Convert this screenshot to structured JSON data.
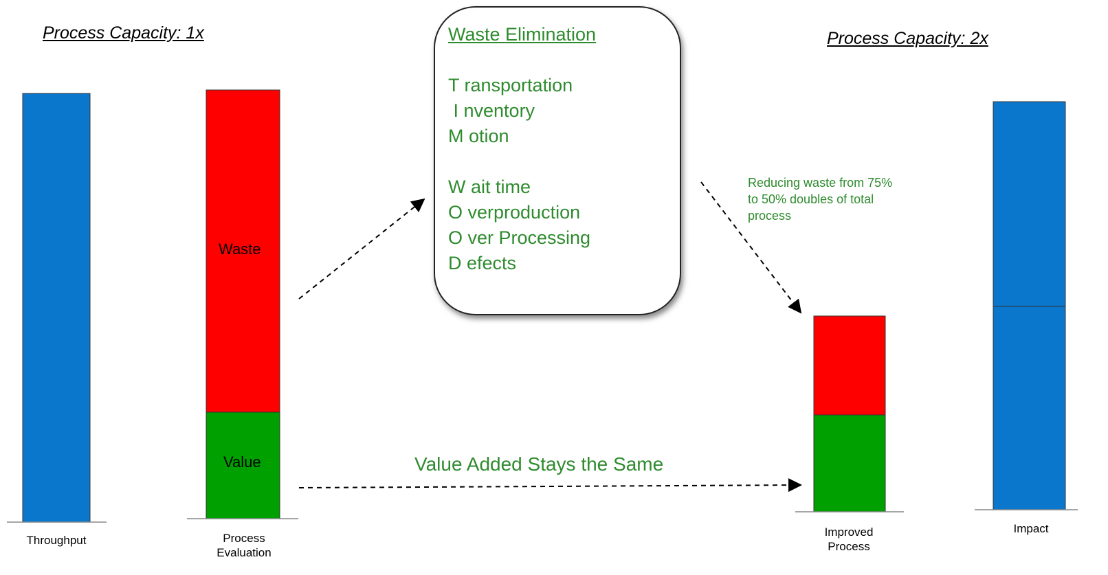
{
  "left_heading": "Process Capacity: 1x",
  "right_heading": "Process Capacity: 2x",
  "bars": [
    {
      "label": "Throughput"
    },
    {
      "label": "Process Evaluation",
      "segments": [
        "Waste",
        "Value"
      ]
    },
    {
      "label": "Improved Process"
    },
    {
      "label": "Impact"
    }
  ],
  "callout": {
    "title": "Waste Elimination",
    "groups": [
      [
        "T ransportation",
        " I nventory",
        "M otion"
      ],
      [
        "W ait time",
        "O verproduction",
        "O ver Processing",
        "D efects"
      ]
    ]
  },
  "annotation": "Reducing waste from 75% to 50% doubles of total process",
  "arrow_label": "Value Added Stays the Same"
}
